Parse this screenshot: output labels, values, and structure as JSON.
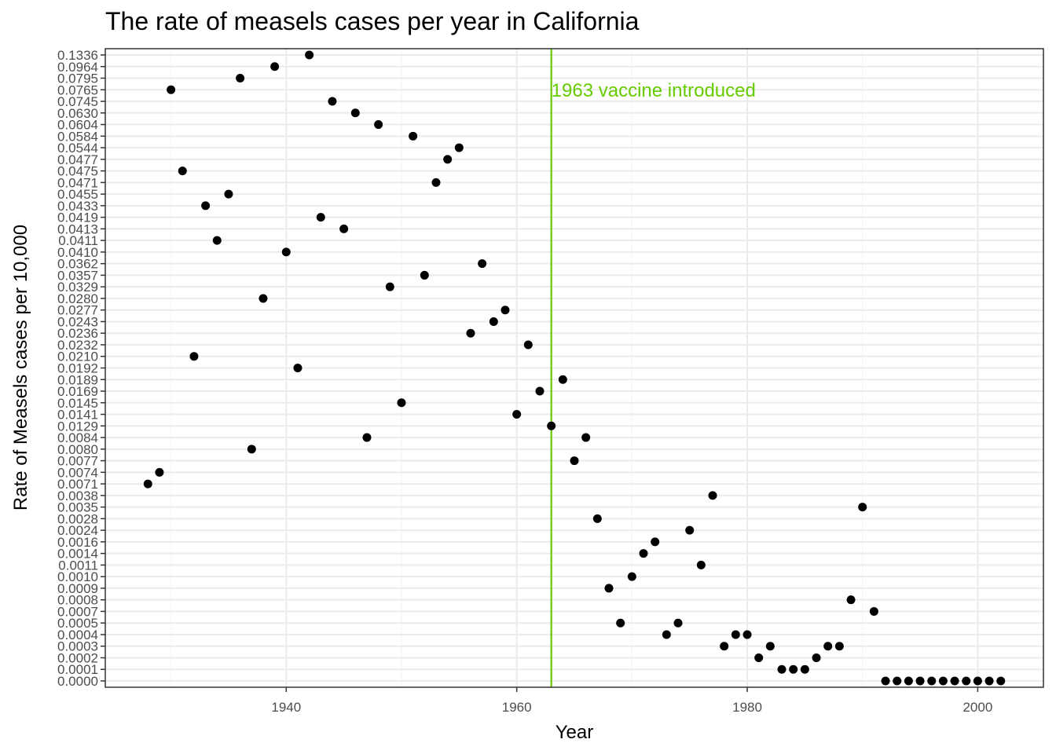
{
  "chart_data": {
    "type": "scatter",
    "title": "The rate of measels cases per year in California",
    "xlabel": "Year",
    "ylabel": "Rate of Measels cases per 10,000",
    "xlim": [
      1924.3,
      2005.7
    ],
    "x_ticks": [
      1940,
      1960,
      1980,
      2000
    ],
    "y_categories": [
      "0.0000",
      "0.0001",
      "0.0002",
      "0.0003",
      "0.0004",
      "0.0005",
      "0.0007",
      "0.0008",
      "0.0009",
      "0.0010",
      "0.0011",
      "0.0014",
      "0.0016",
      "0.0024",
      "0.0028",
      "0.0035",
      "0.0038",
      "0.0071",
      "0.0074",
      "0.0077",
      "0.0080",
      "0.0084",
      "0.0129",
      "0.0141",
      "0.0145",
      "0.0169",
      "0.0189",
      "0.0192",
      "0.0210",
      "0.0232",
      "0.0236",
      "0.0243",
      "0.0277",
      "0.0280",
      "0.0329",
      "0.0357",
      "0.0362",
      "0.0410",
      "0.0411",
      "0.0413",
      "0.0419",
      "0.0433",
      "0.0455",
      "0.0471",
      "0.0475",
      "0.0477",
      "0.0544",
      "0.0584",
      "0.0604",
      "0.0630",
      "0.0745",
      "0.0765",
      "0.0795",
      "0.0964",
      "0.1336"
    ],
    "points": [
      {
        "x": 1928,
        "y": "0.0071"
      },
      {
        "x": 1929,
        "y": "0.0074"
      },
      {
        "x": 1930,
        "y": "0.0765"
      },
      {
        "x": 1931,
        "y": "0.0475"
      },
      {
        "x": 1932,
        "y": "0.0210"
      },
      {
        "x": 1933,
        "y": "0.0433"
      },
      {
        "x": 1934,
        "y": "0.0411"
      },
      {
        "x": 1935,
        "y": "0.0455"
      },
      {
        "x": 1936,
        "y": "0.0795"
      },
      {
        "x": 1937,
        "y": "0.0080"
      },
      {
        "x": 1938,
        "y": "0.0280"
      },
      {
        "x": 1939,
        "y": "0.0964"
      },
      {
        "x": 1940,
        "y": "0.0410"
      },
      {
        "x": 1941,
        "y": "0.0192"
      },
      {
        "x": 1942,
        "y": "0.1336"
      },
      {
        "x": 1943,
        "y": "0.0419"
      },
      {
        "x": 1944,
        "y": "0.0745"
      },
      {
        "x": 1945,
        "y": "0.0413"
      },
      {
        "x": 1946,
        "y": "0.0630"
      },
      {
        "x": 1947,
        "y": "0.0084"
      },
      {
        "x": 1948,
        "y": "0.0604"
      },
      {
        "x": 1949,
        "y": "0.0329"
      },
      {
        "x": 1950,
        "y": "0.0145"
      },
      {
        "x": 1951,
        "y": "0.0584"
      },
      {
        "x": 1952,
        "y": "0.0357"
      },
      {
        "x": 1953,
        "y": "0.0471"
      },
      {
        "x": 1954,
        "y": "0.0477"
      },
      {
        "x": 1955,
        "y": "0.0544"
      },
      {
        "x": 1956,
        "y": "0.0236"
      },
      {
        "x": 1957,
        "y": "0.0362"
      },
      {
        "x": 1958,
        "y": "0.0243"
      },
      {
        "x": 1959,
        "y": "0.0277"
      },
      {
        "x": 1960,
        "y": "0.0141"
      },
      {
        "x": 1961,
        "y": "0.0232"
      },
      {
        "x": 1962,
        "y": "0.0169"
      },
      {
        "x": 1963,
        "y": "0.0129"
      },
      {
        "x": 1964,
        "y": "0.0189"
      },
      {
        "x": 1965,
        "y": "0.0077"
      },
      {
        "x": 1966,
        "y": "0.0084"
      },
      {
        "x": 1967,
        "y": "0.0028"
      },
      {
        "x": 1968,
        "y": "0.0009"
      },
      {
        "x": 1969,
        "y": "0.0005"
      },
      {
        "x": 1970,
        "y": "0.0010"
      },
      {
        "x": 1971,
        "y": "0.0014"
      },
      {
        "x": 1972,
        "y": "0.0016"
      },
      {
        "x": 1973,
        "y": "0.0004"
      },
      {
        "x": 1974,
        "y": "0.0005"
      },
      {
        "x": 1975,
        "y": "0.0024"
      },
      {
        "x": 1976,
        "y": "0.0011"
      },
      {
        "x": 1977,
        "y": "0.0038"
      },
      {
        "x": 1978,
        "y": "0.0003"
      },
      {
        "x": 1979,
        "y": "0.0004"
      },
      {
        "x": 1980,
        "y": "0.0004"
      },
      {
        "x": 1981,
        "y": "0.0002"
      },
      {
        "x": 1982,
        "y": "0.0003"
      },
      {
        "x": 1983,
        "y": "0.0001"
      },
      {
        "x": 1984,
        "y": "0.0001"
      },
      {
        "x": 1985,
        "y": "0.0001"
      },
      {
        "x": 1986,
        "y": "0.0002"
      },
      {
        "x": 1987,
        "y": "0.0003"
      },
      {
        "x": 1988,
        "y": "0.0003"
      },
      {
        "x": 1989,
        "y": "0.0008"
      },
      {
        "x": 1990,
        "y": "0.0035"
      },
      {
        "x": 1991,
        "y": "0.0007"
      },
      {
        "x": 1992,
        "y": "0.0000"
      },
      {
        "x": 1993,
        "y": "0.0000"
      },
      {
        "x": 1994,
        "y": "0.0000"
      },
      {
        "x": 1995,
        "y": "0.0000"
      },
      {
        "x": 1996,
        "y": "0.0000"
      },
      {
        "x": 1997,
        "y": "0.0000"
      },
      {
        "x": 1998,
        "y": "0.0000"
      },
      {
        "x": 1999,
        "y": "0.0000"
      },
      {
        "x": 2000,
        "y": "0.0000"
      },
      {
        "x": 2001,
        "y": "0.0000"
      },
      {
        "x": 2002,
        "y": "0.0000"
      }
    ],
    "vline": {
      "x": 1963,
      "label": "1963 vaccine introduced",
      "color": "#66cc00"
    },
    "point_color": "#000000",
    "grid": true,
    "legend": "none"
  }
}
